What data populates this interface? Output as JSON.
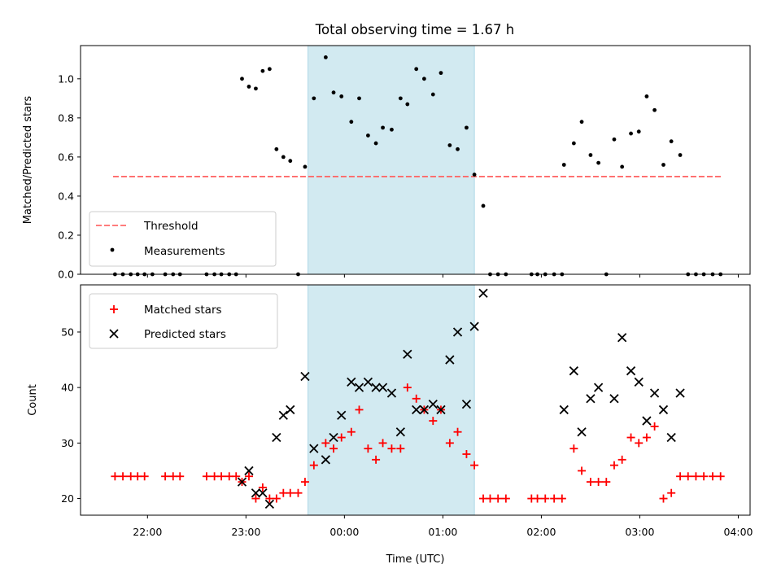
{
  "chart_data": {
    "title": "Total observing time = 1.67 h",
    "xlabel": "Time (UTC)",
    "x_unit": "hours after 00:00 UTC",
    "xlim": [
      -2.68,
      4.12
    ],
    "x_ticks": [
      {
        "value": -2,
        "label": "22:00"
      },
      {
        "value": -1,
        "label": "23:00"
      },
      {
        "value": 0,
        "label": "00:00"
      },
      {
        "value": 1,
        "label": "01:00"
      },
      {
        "value": 2,
        "label": "02:00"
      },
      {
        "value": 3,
        "label": "03:00"
      },
      {
        "value": 4,
        "label": "04:00"
      }
    ],
    "highlight_span": {
      "start": -0.37,
      "end": 1.32,
      "color": "#add8e6"
    },
    "panels": [
      {
        "type": "scatter",
        "ylabel": "Matched/Predicted stars",
        "ylim": [
          0,
          1.17
        ],
        "y_ticks": [
          "0.0",
          "0.2",
          "0.4",
          "0.6",
          "0.8",
          "1.0"
        ],
        "legend_position": "lower-left",
        "threshold": {
          "name": "Threshold",
          "y": 0.5,
          "x_range": [
            -2.35,
            3.83
          ],
          "color": "#ff6a6a"
        },
        "series": [
          {
            "name": "Measurements",
            "color": "#000000",
            "points": [
              [
                -2.33,
                0
              ],
              [
                -2.25,
                0
              ],
              [
                -2.17,
                0
              ],
              [
                -2.1,
                0
              ],
              [
                -2.03,
                0
              ],
              [
                -1.95,
                0
              ],
              [
                -1.82,
                0
              ],
              [
                -1.74,
                0
              ],
              [
                -1.67,
                0
              ],
              [
                -1.4,
                0
              ],
              [
                -1.32,
                0
              ],
              [
                -1.25,
                0
              ],
              [
                -1.17,
                0
              ],
              [
                -1.1,
                0
              ],
              [
                -1.04,
                1.0
              ],
              [
                -0.97,
                0.96
              ],
              [
                -0.9,
                0.95
              ],
              [
                -0.83,
                1.04
              ],
              [
                -0.76,
                1.05
              ],
              [
                -0.69,
                0.64
              ],
              [
                -0.62,
                0.6
              ],
              [
                -0.55,
                0.58
              ],
              [
                -0.47,
                0
              ],
              [
                -0.4,
                0.55
              ],
              [
                -0.31,
                0.9
              ],
              [
                -0.19,
                1.11
              ],
              [
                -0.11,
                0.93
              ],
              [
                -0.03,
                0.91
              ],
              [
                0.07,
                0.78
              ],
              [
                0.15,
                0.9
              ],
              [
                0.24,
                0.71
              ],
              [
                0.32,
                0.67
              ],
              [
                0.39,
                0.75
              ],
              [
                0.48,
                0.74
              ],
              [
                0.57,
                0.9
              ],
              [
                0.64,
                0.87
              ],
              [
                0.73,
                1.05
              ],
              [
                0.81,
                1.0
              ],
              [
                0.9,
                0.92
              ],
              [
                0.98,
                1.03
              ],
              [
                1.07,
                0.66
              ],
              [
                1.15,
                0.64
              ],
              [
                1.24,
                0.75
              ],
              [
                1.32,
                0.51
              ],
              [
                1.41,
                0.35
              ],
              [
                1.48,
                0
              ],
              [
                1.56,
                0
              ],
              [
                1.64,
                0
              ],
              [
                1.9,
                0
              ],
              [
                1.96,
                0
              ],
              [
                2.04,
                0
              ],
              [
                2.13,
                0
              ],
              [
                2.21,
                0
              ],
              [
                2.23,
                0.56
              ],
              [
                2.33,
                0.67
              ],
              [
                2.41,
                0.78
              ],
              [
                2.5,
                0.61
              ],
              [
                2.58,
                0.57
              ],
              [
                2.66,
                0
              ],
              [
                2.74,
                0.69
              ],
              [
                2.82,
                0.55
              ],
              [
                2.91,
                0.72
              ],
              [
                2.99,
                0.73
              ],
              [
                3.07,
                0.91
              ],
              [
                3.15,
                0.84
              ],
              [
                3.24,
                0.56
              ],
              [
                3.32,
                0.68
              ],
              [
                3.41,
                0.61
              ],
              [
                3.49,
                0
              ],
              [
                3.57,
                0
              ],
              [
                3.65,
                0
              ],
              [
                3.74,
                0
              ],
              [
                3.82,
                0
              ]
            ]
          }
        ]
      },
      {
        "type": "scatter",
        "ylabel": "Count",
        "ylim": [
          17,
          58.5
        ],
        "y_ticks": [
          "20",
          "30",
          "40",
          "50"
        ],
        "legend_position": "upper-left",
        "series": [
          {
            "name": "Matched stars",
            "marker": "+",
            "color": "#ff0000",
            "points": [
              [
                -2.33,
                24
              ],
              [
                -2.25,
                24
              ],
              [
                -2.17,
                24
              ],
              [
                -2.1,
                24
              ],
              [
                -2.03,
                24
              ],
              [
                -1.82,
                24
              ],
              [
                -1.74,
                24
              ],
              [
                -1.67,
                24
              ],
              [
                -1.4,
                24
              ],
              [
                -1.32,
                24
              ],
              [
                -1.25,
                24
              ],
              [
                -1.17,
                24
              ],
              [
                -1.1,
                24
              ],
              [
                -1.04,
                23
              ],
              [
                -0.97,
                24
              ],
              [
                -0.9,
                20
              ],
              [
                -0.83,
                22
              ],
              [
                -0.76,
                20
              ],
              [
                -0.69,
                20
              ],
              [
                -0.62,
                21
              ],
              [
                -0.55,
                21
              ],
              [
                -0.47,
                21
              ],
              [
                -0.4,
                23
              ],
              [
                -0.31,
                26
              ],
              [
                -0.19,
                30
              ],
              [
                -0.11,
                29
              ],
              [
                -0.03,
                31
              ],
              [
                0.07,
                32
              ],
              [
                0.15,
                36
              ],
              [
                0.24,
                29
              ],
              [
                0.32,
                27
              ],
              [
                0.39,
                30
              ],
              [
                0.48,
                29
              ],
              [
                0.57,
                29
              ],
              [
                0.64,
                40
              ],
              [
                0.73,
                38
              ],
              [
                0.81,
                36
              ],
              [
                0.9,
                34
              ],
              [
                0.98,
                36
              ],
              [
                1.07,
                30
              ],
              [
                1.15,
                32
              ],
              [
                1.24,
                28
              ],
              [
                1.32,
                26
              ],
              [
                1.41,
                20
              ],
              [
                1.48,
                20
              ],
              [
                1.56,
                20
              ],
              [
                1.64,
                20
              ],
              [
                1.9,
                20
              ],
              [
                1.96,
                20
              ],
              [
                2.04,
                20
              ],
              [
                2.13,
                20
              ],
              [
                2.21,
                20
              ],
              [
                2.33,
                29
              ],
              [
                2.41,
                25
              ],
              [
                2.5,
                23
              ],
              [
                2.58,
                23
              ],
              [
                2.66,
                23
              ],
              [
                2.74,
                26
              ],
              [
                2.82,
                27
              ],
              [
                2.91,
                31
              ],
              [
                2.99,
                30
              ],
              [
                3.07,
                31
              ],
              [
                3.15,
                33
              ],
              [
                3.24,
                20
              ],
              [
                3.32,
                21
              ],
              [
                3.41,
                24
              ],
              [
                3.49,
                24
              ],
              [
                3.57,
                24
              ],
              [
                3.65,
                24
              ],
              [
                3.74,
                24
              ],
              [
                3.82,
                24
              ]
            ]
          },
          {
            "name": "Predicted stars",
            "marker": "x",
            "color": "#000000",
            "points": [
              [
                -1.04,
                23
              ],
              [
                -0.97,
                25
              ],
              [
                -0.9,
                21
              ],
              [
                -0.83,
                21
              ],
              [
                -0.76,
                19
              ],
              [
                -0.69,
                31
              ],
              [
                -0.62,
                35
              ],
              [
                -0.55,
                36
              ],
              [
                -0.4,
                42
              ],
              [
                -0.31,
                29
              ],
              [
                -0.19,
                27
              ],
              [
                -0.11,
                31
              ],
              [
                -0.03,
                35
              ],
              [
                0.07,
                41
              ],
              [
                0.15,
                40
              ],
              [
                0.24,
                41
              ],
              [
                0.32,
                40
              ],
              [
                0.39,
                40
              ],
              [
                0.48,
                39
              ],
              [
                0.57,
                32
              ],
              [
                0.64,
                46
              ],
              [
                0.73,
                36
              ],
              [
                0.81,
                36
              ],
              [
                0.9,
                37
              ],
              [
                0.98,
                36
              ],
              [
                1.07,
                45
              ],
              [
                1.15,
                50
              ],
              [
                1.24,
                37
              ],
              [
                1.32,
                51
              ],
              [
                1.41,
                57
              ],
              [
                2.23,
                36
              ],
              [
                2.33,
                43
              ],
              [
                2.41,
                32
              ],
              [
                2.5,
                38
              ],
              [
                2.58,
                40
              ],
              [
                2.74,
                38
              ],
              [
                2.82,
                49
              ],
              [
                2.91,
                43
              ],
              [
                2.99,
                41
              ],
              [
                3.07,
                34
              ],
              [
                3.15,
                39
              ],
              [
                3.24,
                36
              ],
              [
                3.32,
                31
              ],
              [
                3.41,
                39
              ]
            ]
          }
        ]
      }
    ]
  }
}
